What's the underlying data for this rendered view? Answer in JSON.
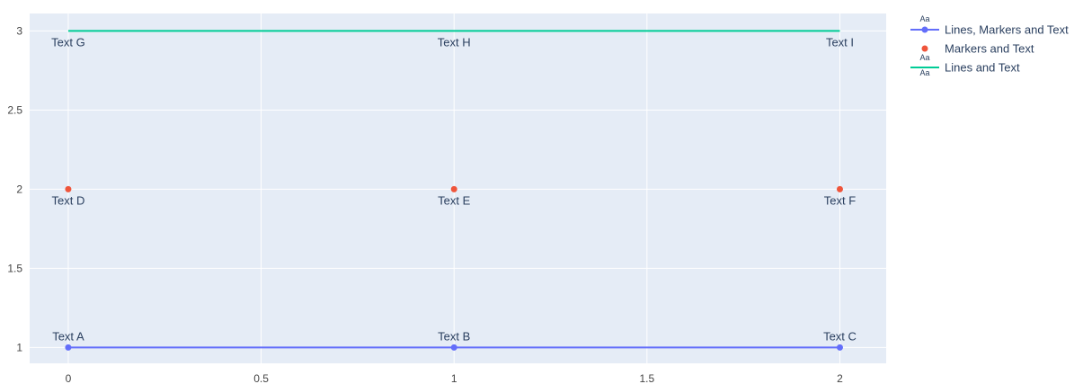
{
  "chart_data": {
    "type": "line",
    "title": "",
    "xlabel": "",
    "ylabel": "",
    "xlim": [
      -0.1,
      2.12
    ],
    "ylim": [
      0.9,
      3.11
    ],
    "x_ticks": [
      0,
      0.5,
      1,
      1.5,
      2
    ],
    "x_tick_labels": [
      "0",
      "0.5",
      "1",
      "1.5",
      "2"
    ],
    "y_ticks": [
      1,
      1.5,
      2,
      2.5,
      3
    ],
    "y_tick_labels": [
      "1",
      "1.5",
      "2",
      "2.5",
      "3"
    ],
    "grid": true,
    "legend_position": "top-right outside plot",
    "colors": {
      "plot_background": "#E5ECF6",
      "grid": "#ffffff",
      "text": "#2a3f5f"
    },
    "series": [
      {
        "name": "Lines, Markers and Text",
        "mode": "lines+markers+text",
        "color": "#636efa",
        "x": [
          0,
          1,
          2
        ],
        "y": [
          1,
          1,
          1
        ],
        "text": [
          "Text A",
          "Text B",
          "Text C"
        ],
        "text_position": "top"
      },
      {
        "name": "Markers and Text",
        "mode": "markers+text",
        "color": "#EF553B",
        "x": [
          0,
          1,
          2
        ],
        "y": [
          2,
          2,
          2
        ],
        "text": [
          "Text D",
          "Text E",
          "Text F"
        ],
        "text_position": "bottom"
      },
      {
        "name": "Lines and Text",
        "mode": "lines+text",
        "color": "#00cc96",
        "x": [
          0,
          1,
          2
        ],
        "y": [
          3,
          3,
          3
        ],
        "text": [
          "Text G",
          "Text H",
          "Text I"
        ],
        "text_position": "bottom"
      }
    ],
    "legend_symbol_text": "Aa"
  }
}
